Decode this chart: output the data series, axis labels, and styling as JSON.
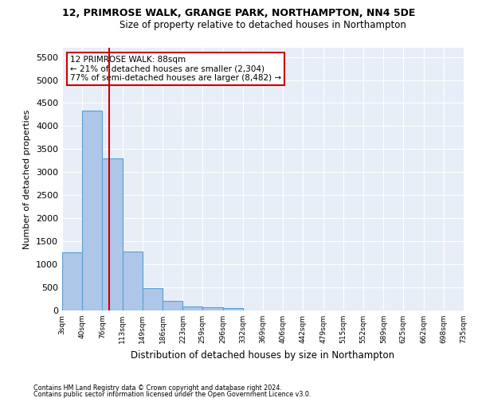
{
  "title1": "12, PRIMROSE WALK, GRANGE PARK, NORTHAMPTON, NN4 5DE",
  "title2": "Size of property relative to detached houses in Northampton",
  "xlabel": "Distribution of detached houses by size in Northampton",
  "ylabel": "Number of detached properties",
  "bar_color": "#aec6e8",
  "bar_edge_color": "#5a9fd4",
  "background_color": "#e8eef8",
  "grid_color": "#ffffff",
  "annotation_line_color": "#cc0000",
  "annotation_box_line1": "12 PRIMROSE WALK: 88sqm",
  "annotation_box_line2": "← 21% of detached houses are smaller (2,304)",
  "annotation_box_line3": "77% of semi-detached houses are larger (8,482) →",
  "annotation_box_color": "#cc0000",
  "property_size": 88,
  "bin_edges": [
    3,
    40,
    76,
    113,
    149,
    186,
    223,
    259,
    296,
    332,
    369,
    406,
    442,
    479,
    515,
    552,
    589,
    625,
    662,
    698,
    735
  ],
  "bar_heights": [
    1260,
    4330,
    3300,
    1280,
    490,
    215,
    90,
    65,
    55,
    0,
    0,
    0,
    0,
    0,
    0,
    0,
    0,
    0,
    0,
    0
  ],
  "ylim": [
    0,
    5700
  ],
  "yticks": [
    0,
    500,
    1000,
    1500,
    2000,
    2500,
    3000,
    3500,
    4000,
    4500,
    5000,
    5500
  ],
  "footnote1": "Contains HM Land Registry data © Crown copyright and database right 2024.",
  "footnote2": "Contains public sector information licensed under the Open Government Licence v3.0."
}
